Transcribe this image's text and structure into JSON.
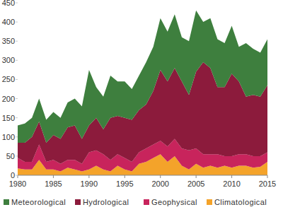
{
  "chart_data": {
    "type": "area",
    "stacked": true,
    "x": [
      1980,
      1981,
      1982,
      1983,
      1984,
      1985,
      1986,
      1987,
      1988,
      1989,
      1990,
      1991,
      1992,
      1993,
      1994,
      1995,
      1996,
      1997,
      1998,
      1999,
      2000,
      2001,
      2002,
      2003,
      2004,
      2005,
      2006,
      2007,
      2008,
      2009,
      2010,
      2011,
      2012,
      2013,
      2014,
      2015
    ],
    "series": [
      {
        "name": "Meteorological",
        "color": "#3e7f3e",
        "values": [
          45,
          50,
          50,
          60,
          60,
          60,
          55,
          65,
          70,
          85,
          145,
          80,
          85,
          110,
          90,
          95,
          80,
          90,
          110,
          115,
          135,
          130,
          140,
          115,
          140,
          160,
          105,
          130,
          125,
          115,
          125,
          90,
          140,
          120,
          115,
          120
        ]
      },
      {
        "name": "Hydrological",
        "color": "#8c1b3c",
        "values": [
          40,
          50,
          65,
          60,
          50,
          65,
          65,
          85,
          90,
          65,
          70,
          85,
          65,
          110,
          100,
          105,
          110,
          110,
          115,
          140,
          185,
          170,
          185,
          175,
          145,
          200,
          240,
          225,
          175,
          180,
          215,
          190,
          150,
          160,
          155,
          175
        ]
      },
      {
        "name": "Geophysical",
        "color": "#c8245c",
        "values": [
          27,
          20,
          20,
          40,
          20,
          25,
          20,
          20,
          25,
          20,
          45,
          40,
          40,
          30,
          30,
          30,
          25,
          30,
          35,
          35,
          35,
          40,
          45,
          45,
          50,
          40,
          35,
          30,
          35,
          25,
          30,
          30,
          30,
          30,
          28,
          25
        ]
      },
      {
        "name": "Climatological",
        "color": "#f4a32a",
        "values": [
          18,
          15,
          15,
          40,
          15,
          15,
          10,
          20,
          15,
          10,
          15,
          25,
          15,
          10,
          25,
          15,
          10,
          30,
          35,
          45,
          55,
          35,
          50,
          25,
          15,
          30,
          20,
          25,
          20,
          25,
          20,
          25,
          25,
          20,
          22,
          35
        ]
      }
    ],
    "xlim": [
      1980,
      2015
    ],
    "xticks": [
      1980,
      1985,
      1990,
      1995,
      2000,
      2005,
      2010,
      2015
    ],
    "ylim": [
      0,
      450
    ],
    "yticks": [
      0,
      50,
      100,
      150,
      200,
      250,
      300,
      350,
      400,
      450
    ],
    "grid": false,
    "legend": "bottom"
  }
}
